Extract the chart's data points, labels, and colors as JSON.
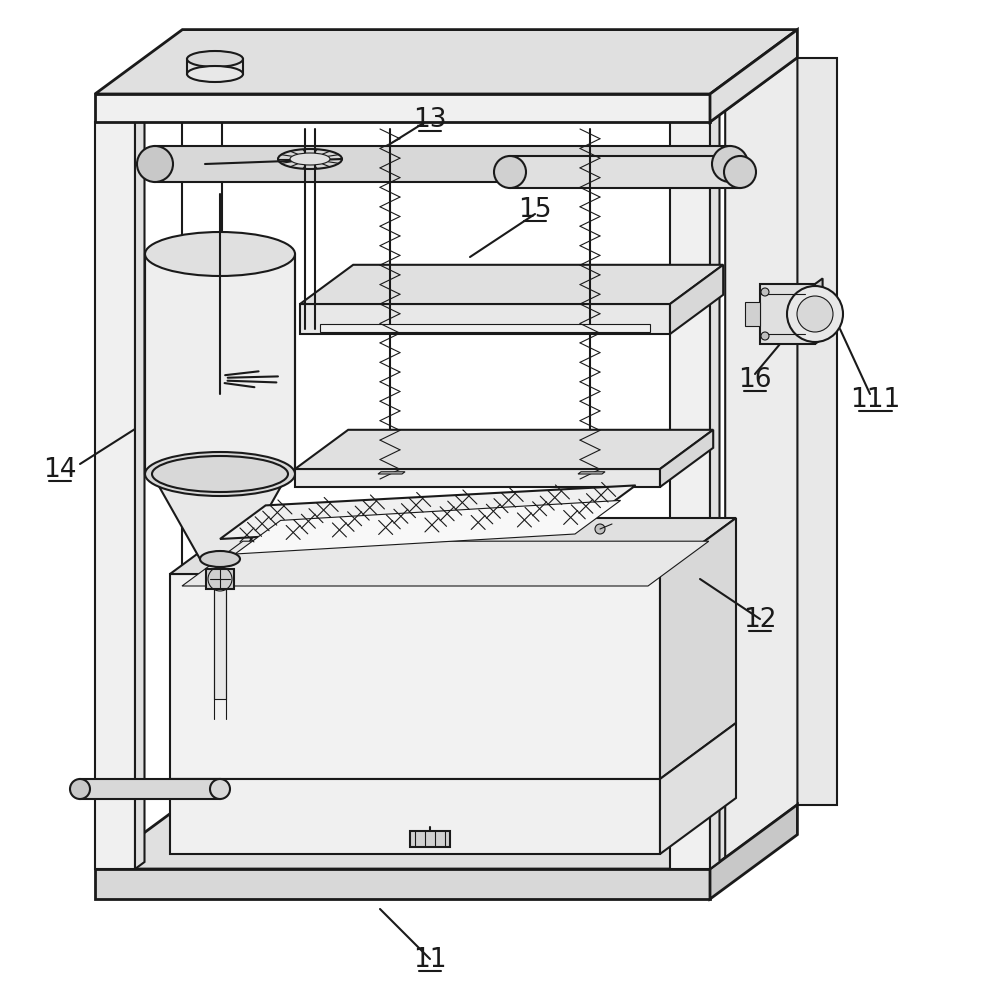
{
  "bg_color": "#ffffff",
  "lc": "#1a1a1a",
  "lw": 1.5,
  "lw_thin": 0.8,
  "lw_thick": 2.0,
  "fill_top": "#eeeeee",
  "fill_side_right": "#e0e0e0",
  "fill_side_left": "#f5f5f5",
  "fill_white": "#ffffff",
  "fill_mid": "#d8d8d8",
  "fill_dark": "#c8c8c8"
}
